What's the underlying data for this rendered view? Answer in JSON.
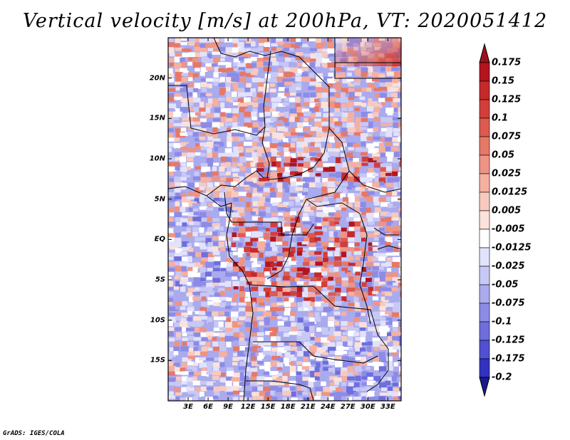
{
  "title": "Vertical velocity [m/s] at 200hPa, VT: 2020051412",
  "credit": "GrADS: IGES/COLA",
  "map": {
    "lon_range": [
      0,
      35
    ],
    "lat_range": [
      -20,
      25
    ],
    "lat_ticks": [
      {
        "value": 20,
        "label": "20N"
      },
      {
        "value": 15,
        "label": "15N"
      },
      {
        "value": 10,
        "label": "10N"
      },
      {
        "value": 5,
        "label": "5N"
      },
      {
        "value": 0,
        "label": "EQ"
      },
      {
        "value": -5,
        "label": "5S"
      },
      {
        "value": -10,
        "label": "10S"
      },
      {
        "value": -15,
        "label": "15S"
      }
    ],
    "lon_ticks": [
      {
        "value": 3,
        "label": "3E"
      },
      {
        "value": 6,
        "label": "6E"
      },
      {
        "value": 9,
        "label": "9E"
      },
      {
        "value": 12,
        "label": "12E"
      },
      {
        "value": 15,
        "label": "15E"
      },
      {
        "value": 18,
        "label": "18E"
      },
      {
        "value": 21,
        "label": "21E"
      },
      {
        "value": 24,
        "label": "24E"
      },
      {
        "value": 27,
        "label": "27E"
      },
      {
        "value": 30,
        "label": "30E"
      },
      {
        "value": 33,
        "label": "33E"
      }
    ]
  },
  "colorbar": {
    "levels": [
      {
        "label": "0.175",
        "color": "#b4141e"
      },
      {
        "label": "0.15",
        "color": "#c42a2a"
      },
      {
        "label": "0.125",
        "color": "#d23e3a"
      },
      {
        "label": "0.1",
        "color": "#dc5a50"
      },
      {
        "label": "0.075",
        "color": "#e67868"
      },
      {
        "label": "0.05",
        "color": "#ee9484"
      },
      {
        "label": "0.025",
        "color": "#f5b0a2"
      },
      {
        "label": "0.0125",
        "color": "#f8cabe"
      },
      {
        "label": "0.005",
        "color": "#fbe2da"
      },
      {
        "label": "-0.005",
        "color": "#ffffff"
      },
      {
        "label": "-0.0125",
        "color": "#e2e2fb"
      },
      {
        "label": "-0.025",
        "color": "#c8c8f5"
      },
      {
        "label": "-0.05",
        "color": "#aaaaee"
      },
      {
        "label": "-0.075",
        "color": "#8c8ce6"
      },
      {
        "label": "-0.1",
        "color": "#6e6edc"
      },
      {
        "label": "-0.125",
        "color": "#5050d0"
      },
      {
        "label": "-0.175",
        "color": "#3232c0"
      },
      {
        "label": "-0.2",
        "color": "#1e1ea8"
      }
    ],
    "top_color": "#a01018",
    "bottom_color": "#1a1a8a"
  }
}
